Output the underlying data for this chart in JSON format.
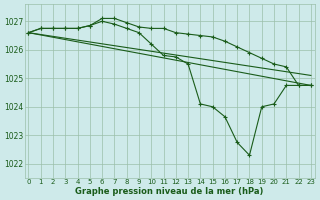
{
  "title": "Graphe pression niveau de la mer (hPa)",
  "ylim": [
    1021.5,
    1027.6
  ],
  "yticks": [
    1022,
    1023,
    1024,
    1025,
    1026,
    1027
  ],
  "xlim": [
    -0.3,
    23.3
  ],
  "bg_color": "#ceeaea",
  "line_color": "#1a5c1a",
  "grid_color": "#9bbfaa",
  "series": [
    {
      "x": [
        0,
        1,
        2,
        3,
        4,
        5,
        6,
        7,
        8,
        9,
        10,
        11,
        12,
        13,
        14,
        15,
        16,
        17,
        18,
        19,
        20,
        21,
        22,
        23
      ],
      "y": [
        1026.6,
        1026.75,
        1026.75,
        1026.75,
        1026.75,
        1026.85,
        1027.1,
        1027.1,
        1026.95,
        1026.8,
        1026.75,
        1026.75,
        1026.6,
        1026.55,
        1026.5,
        1026.45,
        1026.3,
        1026.1,
        1025.9,
        1025.7,
        1025.5,
        1025.4,
        1024.75,
        1024.75
      ],
      "marker": true
    },
    {
      "x": [
        0,
        1,
        2,
        3,
        4,
        5,
        6,
        7,
        8,
        9,
        10,
        11,
        12,
        13,
        14,
        15,
        16,
        17,
        18,
        19,
        20,
        21,
        22,
        23
      ],
      "y": [
        1026.6,
        1026.75,
        1026.75,
        1026.75,
        1026.75,
        1026.85,
        1027.0,
        1026.9,
        1026.75,
        1026.6,
        1026.2,
        1025.8,
        1025.75,
        1025.5,
        1024.1,
        1024.0,
        1023.65,
        1022.75,
        1022.3,
        1024.0,
        1024.1,
        1024.75,
        1024.75,
        1024.75
      ],
      "marker": true
    },
    {
      "x": [
        0,
        23
      ],
      "y": [
        1026.6,
        1025.1
      ],
      "marker": false
    },
    {
      "x": [
        0,
        23
      ],
      "y": [
        1026.6,
        1024.75
      ],
      "marker": false
    }
  ]
}
